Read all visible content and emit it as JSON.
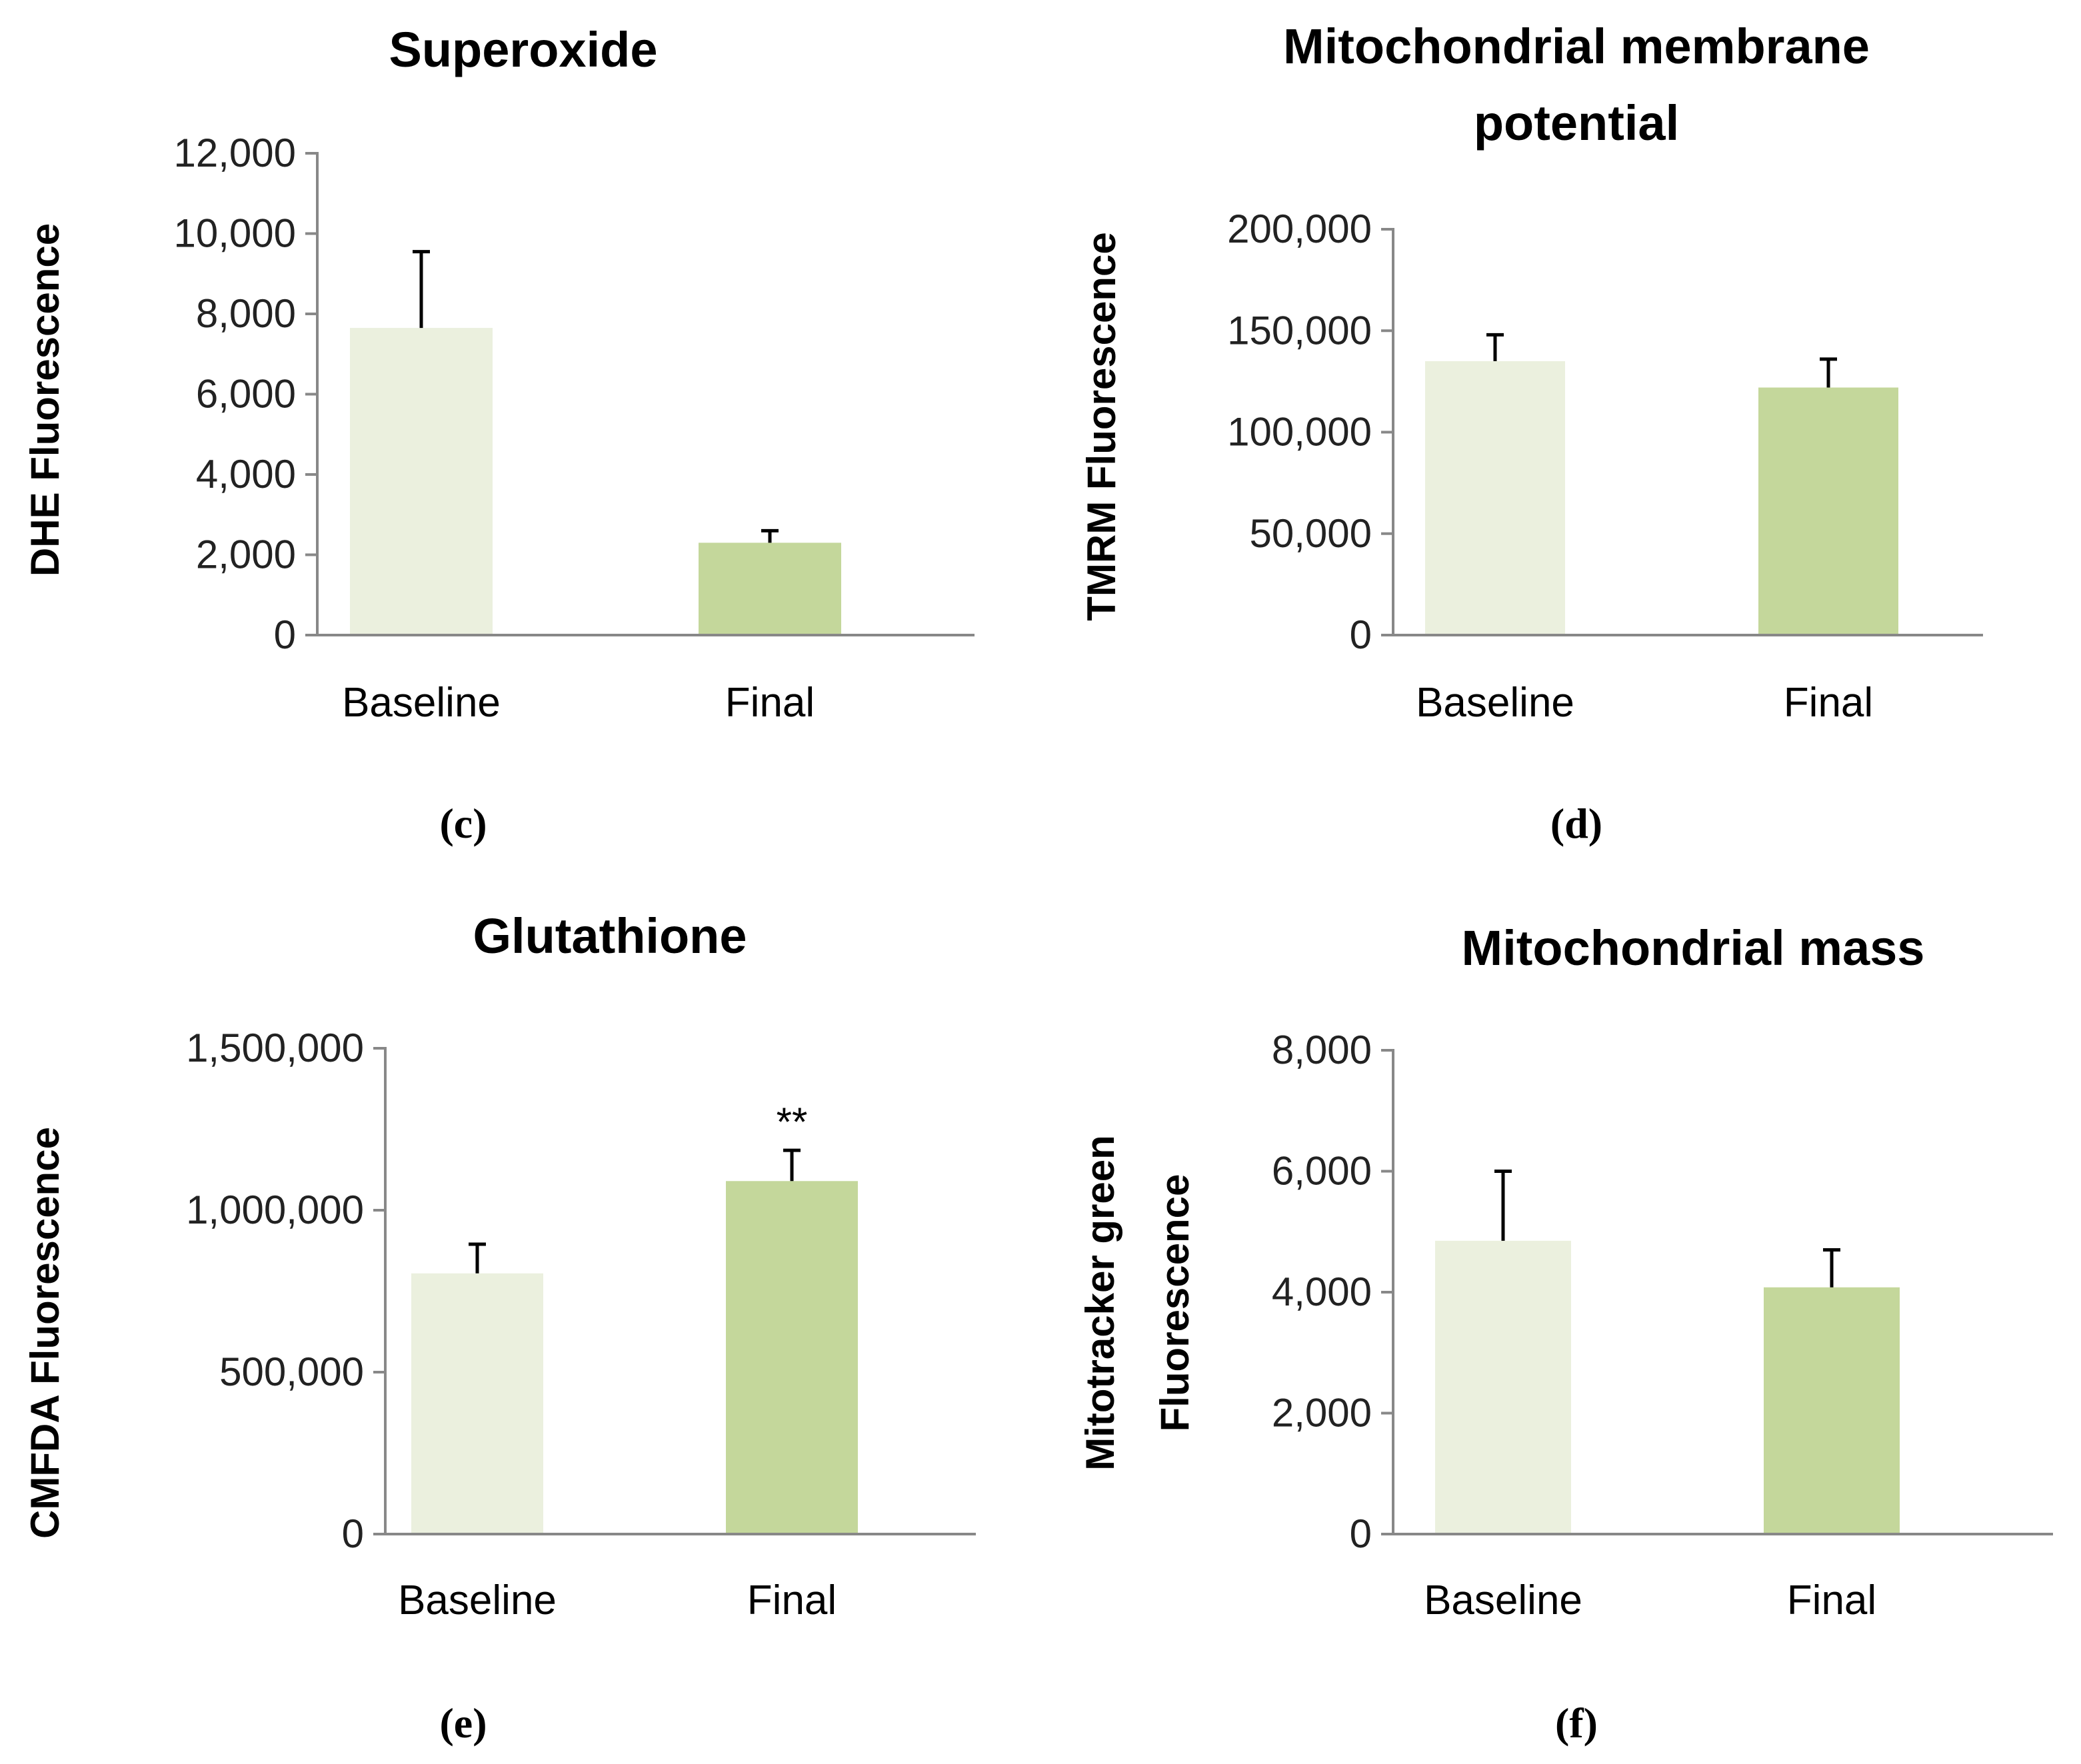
{
  "colors": {
    "baseline_bar": "#ebf0de",
    "final_bar": "#c4d79b",
    "axis": "#888888"
  },
  "chart_data": [
    {
      "type": "bar",
      "panel_label": "(c)",
      "title": [
        "Superoxide"
      ],
      "ylabel": [
        "DHE Fluorescence"
      ],
      "categories": [
        "Baseline",
        "Final"
      ],
      "values": [
        7650,
        2300
      ],
      "errors": [
        1900,
        300
      ],
      "annotations": [
        "",
        ""
      ],
      "ylim": [
        0,
        12000
      ],
      "yticks": [
        0,
        2000,
        4000,
        6000,
        8000,
        10000,
        12000
      ],
      "ytick_labels": [
        "0",
        "2,000",
        "4,000",
        "6,000",
        "8,000",
        "10,000",
        "12,000"
      ]
    },
    {
      "type": "bar",
      "panel_label": "(d)",
      "title": [
        "Mitochondrial membrane",
        "potential"
      ],
      "ylabel": [
        "TMRM Fluorescence"
      ],
      "categories": [
        "Baseline",
        "Final"
      ],
      "values": [
        135000,
        122000
      ],
      "errors": [
        13000,
        14000
      ],
      "annotations": [
        "",
        ""
      ],
      "ylim": [
        0,
        200000
      ],
      "yticks": [
        0,
        50000,
        100000,
        150000,
        200000
      ],
      "ytick_labels": [
        "0",
        "50,000",
        "100,000",
        "150,000",
        "200,000"
      ]
    },
    {
      "type": "bar",
      "panel_label": "(e)",
      "title": [
        "Glutathione"
      ],
      "ylabel": [
        "CMFDA Fluorescence"
      ],
      "categories": [
        "Baseline",
        "Final"
      ],
      "values": [
        805000,
        1090000
      ],
      "errors": [
        90000,
        95000
      ],
      "annotations": [
        "",
        "**"
      ],
      "ylim": [
        0,
        1500000
      ],
      "yticks": [
        0,
        500000,
        1000000,
        1500000
      ],
      "ytick_labels": [
        "0",
        "500,000",
        "1,000,000",
        "1,500,000"
      ]
    },
    {
      "type": "bar",
      "panel_label": "(f)",
      "title": [
        "Mitochondrial mass"
      ],
      "ylabel": [
        "Mitotracker green",
        "Fluorescence"
      ],
      "categories": [
        "Baseline",
        "Final"
      ],
      "values": [
        4850,
        4080
      ],
      "errors": [
        1150,
        620
      ],
      "annotations": [
        "",
        ""
      ],
      "ylim": [
        0,
        8000
      ],
      "yticks": [
        0,
        2000,
        4000,
        6000,
        8000
      ],
      "ytick_labels": [
        "0",
        "2,000",
        "4,000",
        "6,000",
        "8,000"
      ]
    }
  ]
}
